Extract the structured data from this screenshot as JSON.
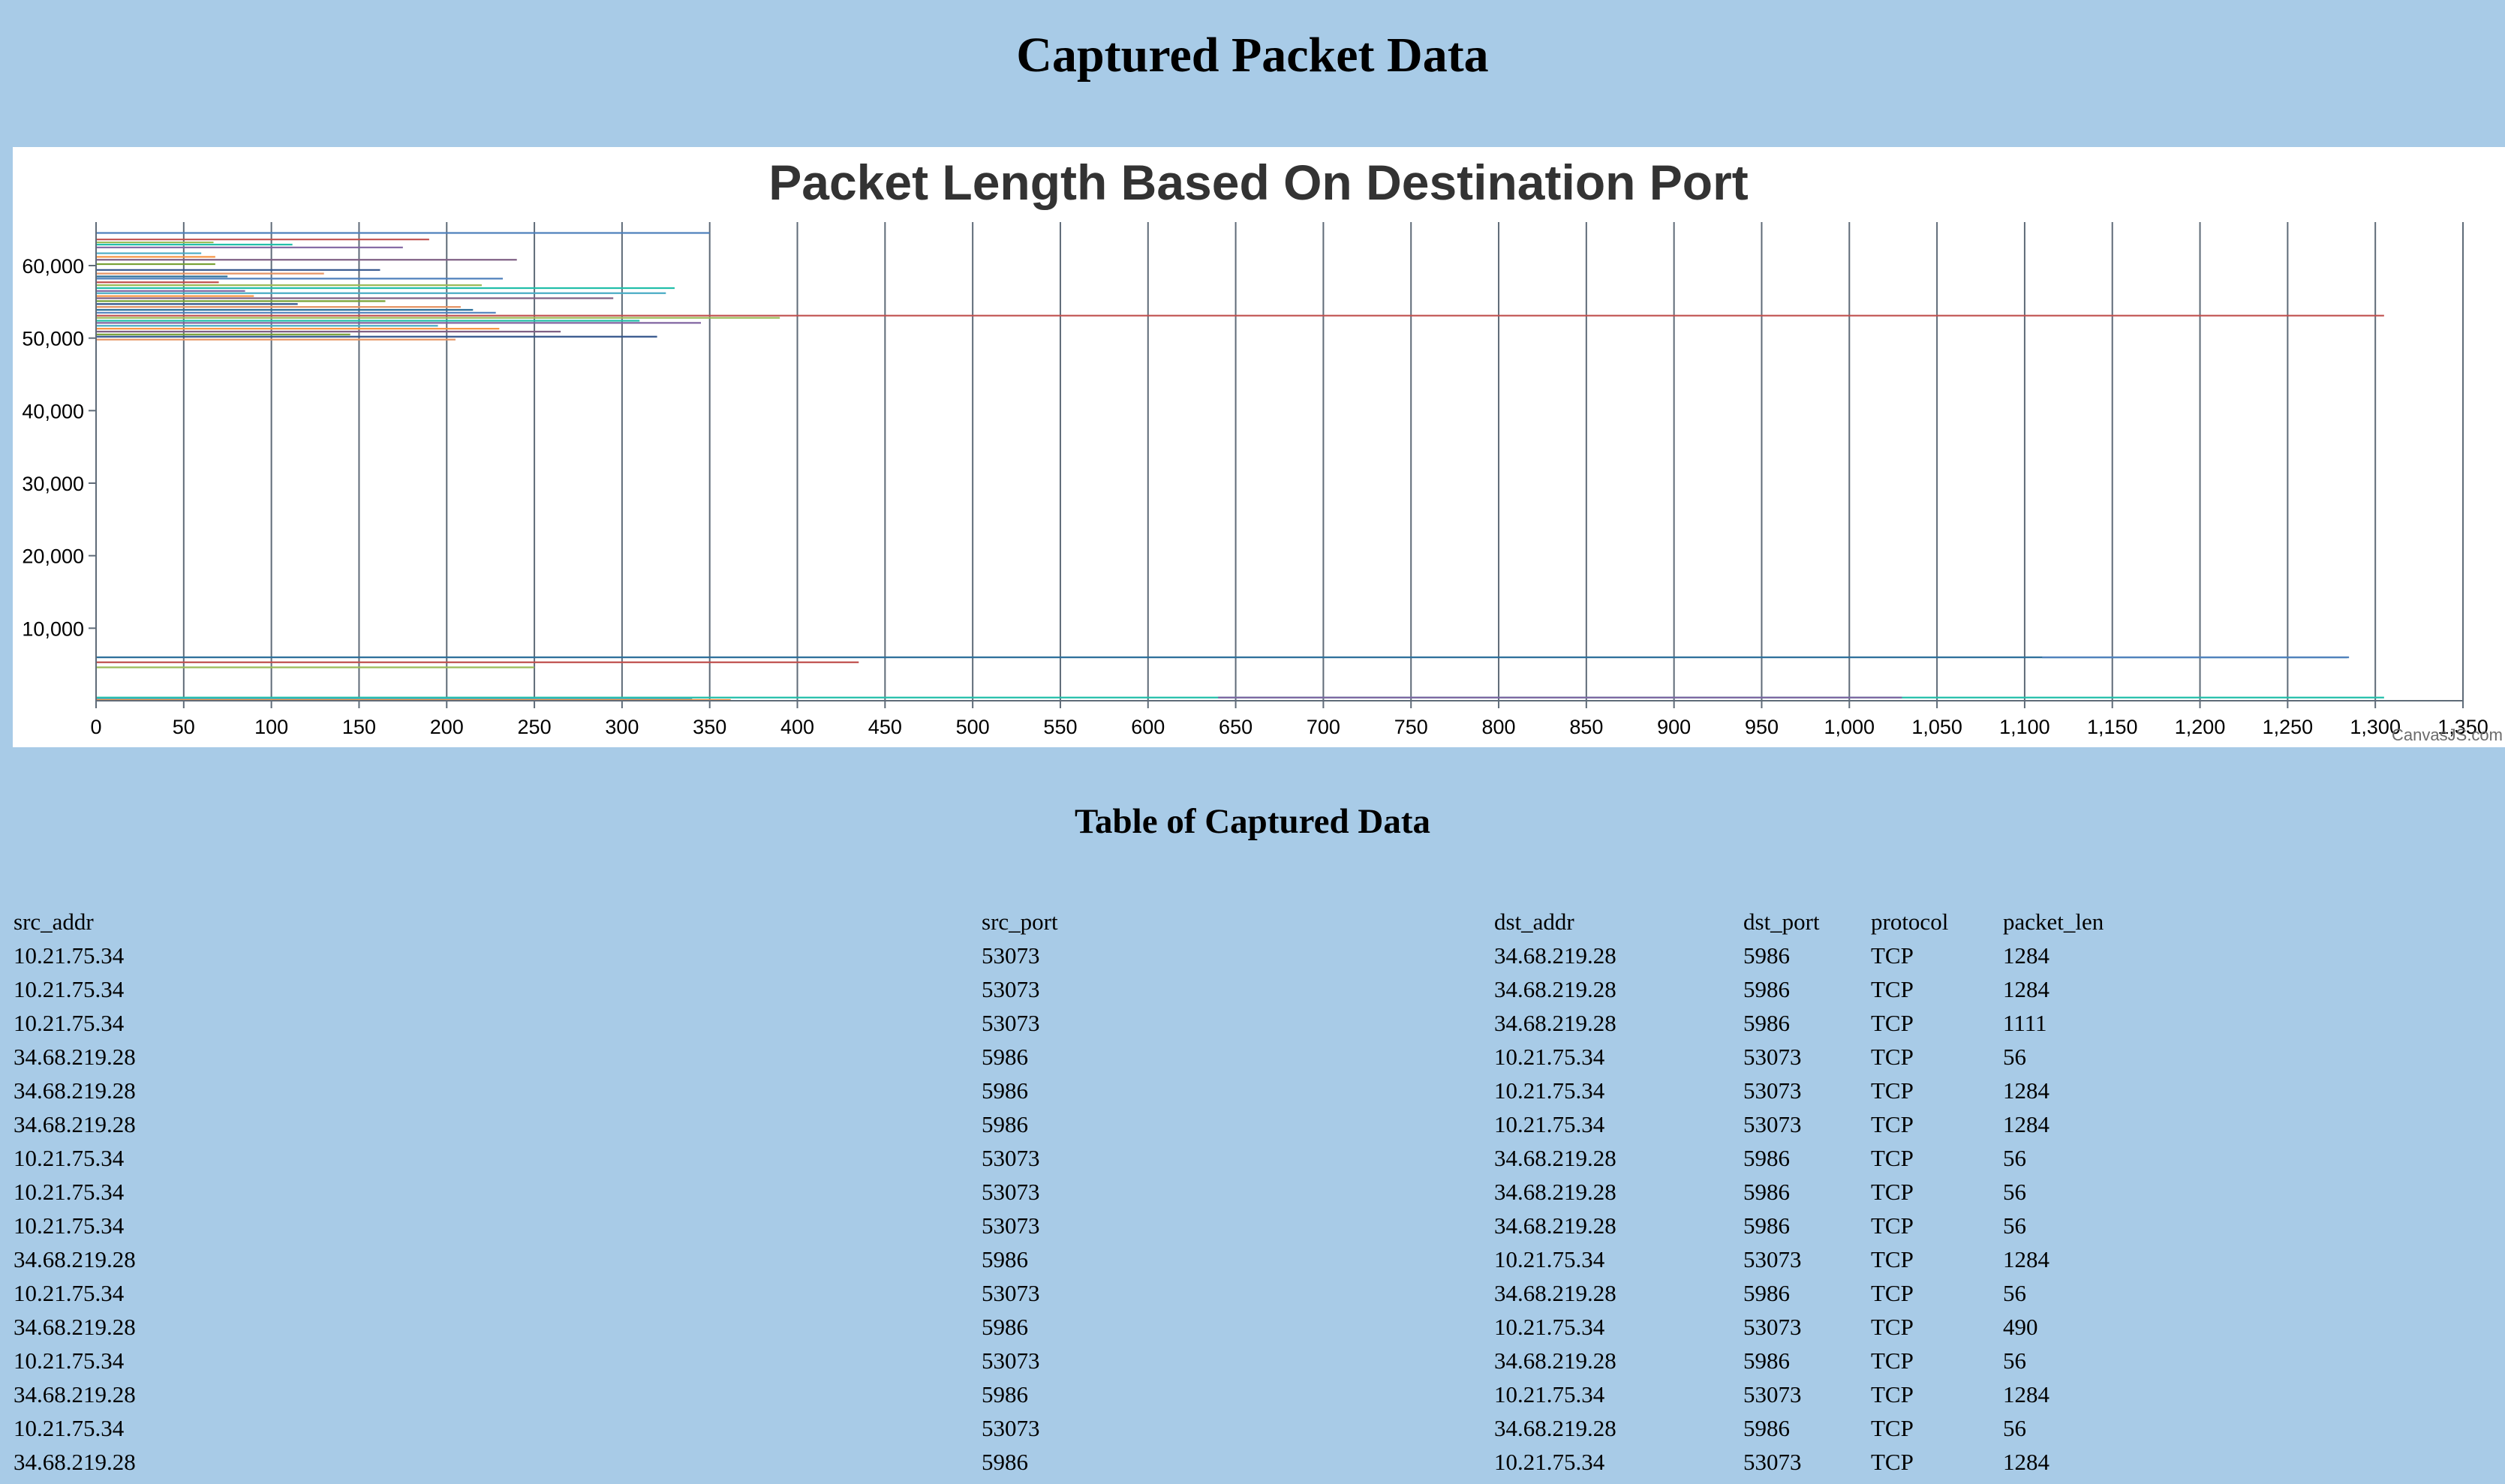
{
  "page": {
    "title": "Captured Packet Data",
    "table_title": "Table of Captured Data",
    "chart_credit": "CanvasJS.com"
  },
  "colors": {
    "background": "#a8cbe7",
    "chart_background": "#ffffff",
    "chart_title": "#333333",
    "grid": "#5f6b78",
    "series_palette": [
      "#4f81bc",
      "#c0504e",
      "#9bbb58",
      "#23bfaa",
      "#8064a1",
      "#4aacc5",
      "#f79647",
      "#7f6084",
      "#77a033",
      "#33558b",
      "#e59566",
      "#2c6f9a"
    ]
  },
  "chart_data": {
    "type": "line",
    "title": "Packet Length Based On Destination Port",
    "xlabel": "",
    "ylabel": "",
    "xlim": [
      0,
      1350
    ],
    "ylim": [
      0,
      66000
    ],
    "x_ticks": [
      0,
      50,
      100,
      150,
      200,
      250,
      300,
      350,
      400,
      450,
      500,
      550,
      600,
      650,
      700,
      750,
      800,
      850,
      900,
      950,
      1000,
      1050,
      1100,
      1150,
      1200,
      1250,
      1300,
      1350
    ],
    "y_ticks": [
      10000,
      20000,
      30000,
      40000,
      50000,
      60000
    ],
    "grid": "vertical",
    "legend": "none",
    "series_note": "each series is one destination port drawn as a horizontal segment from x=0 to x=packet length",
    "series": [
      {
        "y": 64500,
        "x": [
          0,
          350
        ]
      },
      {
        "y": 63600,
        "x": [
          0,
          190
        ]
      },
      {
        "y": 63200,
        "x": [
          0,
          67
        ]
      },
      {
        "y": 62900,
        "x": [
          0,
          112
        ]
      },
      {
        "y": 62500,
        "x": [
          0,
          175
        ]
      },
      {
        "y": 61700,
        "x": [
          0,
          60
        ]
      },
      {
        "y": 61200,
        "x": [
          0,
          68
        ]
      },
      {
        "y": 60800,
        "x": [
          0,
          240
        ]
      },
      {
        "y": 60200,
        "x": [
          0,
          68
        ]
      },
      {
        "y": 59400,
        "x": [
          0,
          162
        ]
      },
      {
        "y": 58900,
        "x": [
          0,
          130
        ]
      },
      {
        "y": 58500,
        "x": [
          0,
          75
        ]
      },
      {
        "y": 58200,
        "x": [
          0,
          232
        ]
      },
      {
        "y": 57700,
        "x": [
          0,
          70
        ]
      },
      {
        "y": 57300,
        "x": [
          0,
          220
        ]
      },
      {
        "y": 56900,
        "x": [
          0,
          330
        ]
      },
      {
        "y": 56500,
        "x": [
          0,
          85
        ]
      },
      {
        "y": 56200,
        "x": [
          0,
          325
        ]
      },
      {
        "y": 55800,
        "x": [
          0,
          90
        ]
      },
      {
        "y": 55500,
        "x": [
          0,
          295
        ]
      },
      {
        "y": 55100,
        "x": [
          0,
          165
        ]
      },
      {
        "y": 54700,
        "x": [
          0,
          115
        ]
      },
      {
        "y": 54300,
        "x": [
          0,
          208
        ]
      },
      {
        "y": 53900,
        "x": [
          0,
          215
        ]
      },
      {
        "y": 53500,
        "x": [
          0,
          228
        ]
      },
      {
        "y": 53100,
        "x": [
          0,
          1305
        ]
      },
      {
        "y": 52800,
        "x": [
          0,
          390
        ]
      },
      {
        "y": 52400,
        "x": [
          0,
          310
        ]
      },
      {
        "y": 52100,
        "x": [
          0,
          345
        ]
      },
      {
        "y": 51700,
        "x": [
          0,
          195
        ]
      },
      {
        "y": 51300,
        "x": [
          0,
          230
        ]
      },
      {
        "y": 50900,
        "x": [
          0,
          265
        ]
      },
      {
        "y": 50500,
        "x": [
          0,
          145
        ]
      },
      {
        "y": 50200,
        "x": [
          0,
          320
        ]
      },
      {
        "y": 49800,
        "x": [
          0,
          205
        ]
      },
      {
        "y": 5986,
        "x": [
          0,
          1284
        ]
      },
      {
        "y": 5986,
        "x": [
          1110,
          1285
        ]
      },
      {
        "y": 5300,
        "x": [
          0,
          435
        ]
      },
      {
        "y": 4600,
        "x": [
          0,
          250
        ]
      },
      {
        "y": 443,
        "x": [
          0,
          1305
        ]
      },
      {
        "y": 443,
        "x": [
          640,
          1030
        ]
      },
      {
        "y": 250,
        "x": [
          0,
          340
        ]
      },
      {
        "y": 120,
        "x": [
          0,
          362
        ]
      }
    ]
  },
  "table": {
    "columns": [
      "src_addr",
      "src_port",
      "dst_addr",
      "dst_port",
      "protocol",
      "packet_len"
    ],
    "rows": [
      [
        "10.21.75.34",
        "53073",
        "34.68.219.28",
        "5986",
        "TCP",
        "1284"
      ],
      [
        "10.21.75.34",
        "53073",
        "34.68.219.28",
        "5986",
        "TCP",
        "1284"
      ],
      [
        "10.21.75.34",
        "53073",
        "34.68.219.28",
        "5986",
        "TCP",
        "1111"
      ],
      [
        "34.68.219.28",
        "5986",
        "10.21.75.34",
        "53073",
        "TCP",
        "56"
      ],
      [
        "34.68.219.28",
        "5986",
        "10.21.75.34",
        "53073",
        "TCP",
        "1284"
      ],
      [
        "34.68.219.28",
        "5986",
        "10.21.75.34",
        "53073",
        "TCP",
        "1284"
      ],
      [
        "10.21.75.34",
        "53073",
        "34.68.219.28",
        "5986",
        "TCP",
        "56"
      ],
      [
        "10.21.75.34",
        "53073",
        "34.68.219.28",
        "5986",
        "TCP",
        "56"
      ],
      [
        "10.21.75.34",
        "53073",
        "34.68.219.28",
        "5986",
        "TCP",
        "56"
      ],
      [
        "34.68.219.28",
        "5986",
        "10.21.75.34",
        "53073",
        "TCP",
        "1284"
      ],
      [
        "10.21.75.34",
        "53073",
        "34.68.219.28",
        "5986",
        "TCP",
        "56"
      ],
      [
        "34.68.219.28",
        "5986",
        "10.21.75.34",
        "53073",
        "TCP",
        "490"
      ],
      [
        "10.21.75.34",
        "53073",
        "34.68.219.28",
        "5986",
        "TCP",
        "56"
      ],
      [
        "34.68.219.28",
        "5986",
        "10.21.75.34",
        "53073",
        "TCP",
        "1284"
      ],
      [
        "10.21.75.34",
        "53073",
        "34.68.219.28",
        "5986",
        "TCP",
        "56"
      ],
      [
        "34.68.219.28",
        "5986",
        "10.21.75.34",
        "53073",
        "TCP",
        "1284"
      ]
    ]
  }
}
